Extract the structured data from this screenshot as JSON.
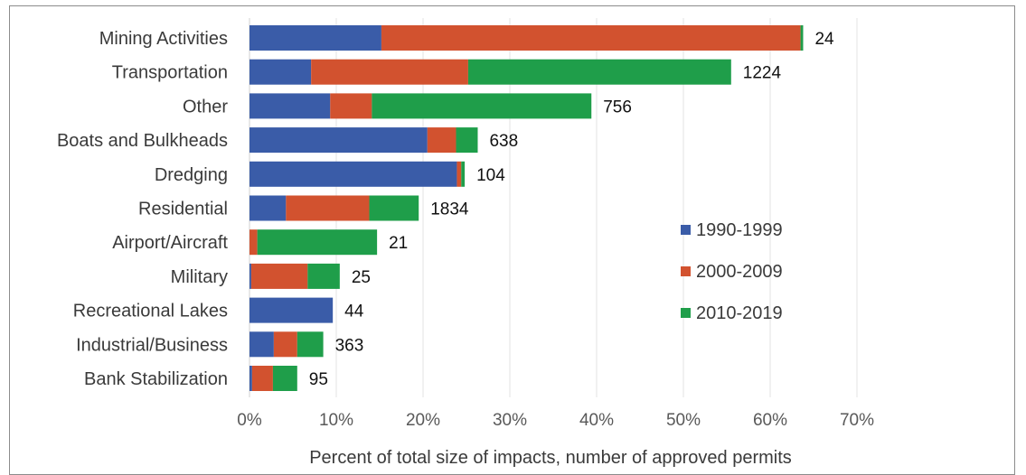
{
  "chart_data": {
    "type": "bar",
    "orientation": "horizontal",
    "stacked": true,
    "categories": [
      "Mining Activities",
      "Transportation",
      "Other",
      "Boats and Bulkheads",
      "Dredging",
      "Residential",
      "Airport/Aircraft",
      "Military",
      "Recreational Lakes",
      "Industrial/Business",
      "Bank Stabilization"
    ],
    "series": [
      {
        "name": "1990-1999",
        "color": "#3a5ca8",
        "values": [
          15.2,
          7.1,
          9.3,
          20.5,
          23.9,
          4.2,
          0.0,
          0.2,
          9.6,
          2.8,
          0.3
        ]
      },
      {
        "name": "2000-2009",
        "color": "#d2522f",
        "values": [
          48.3,
          18.1,
          4.8,
          3.3,
          0.5,
          9.6,
          0.9,
          6.5,
          0.0,
          2.7,
          2.4
        ]
      },
      {
        "name": "2010-2019",
        "color": "#1f9e4a",
        "values": [
          0.3,
          30.3,
          25.3,
          2.5,
          0.4,
          5.7,
          13.8,
          3.7,
          0.0,
          3.0,
          2.8
        ]
      }
    ],
    "data_labels": [
      "24",
      "1224",
      "756",
      "638",
      "104",
      "1834",
      "21",
      "25",
      "44",
      "363",
      "95"
    ],
    "xlabel": "Percent of total size of impacts, number of approved permits",
    "xlim": [
      0,
      70
    ],
    "x_ticks": [
      "0%",
      "10%",
      "20%",
      "30%",
      "40%",
      "50%",
      "60%",
      "70%"
    ],
    "grid": "vertical",
    "legend_placement": "right"
  }
}
